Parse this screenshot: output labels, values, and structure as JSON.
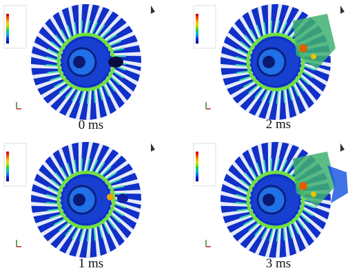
{
  "panels": [
    {
      "label": "0 ms"
    },
    {
      "label": "2 ms"
    },
    {
      "label": "1 ms"
    },
    {
      "label": "3 ms"
    }
  ]
}
